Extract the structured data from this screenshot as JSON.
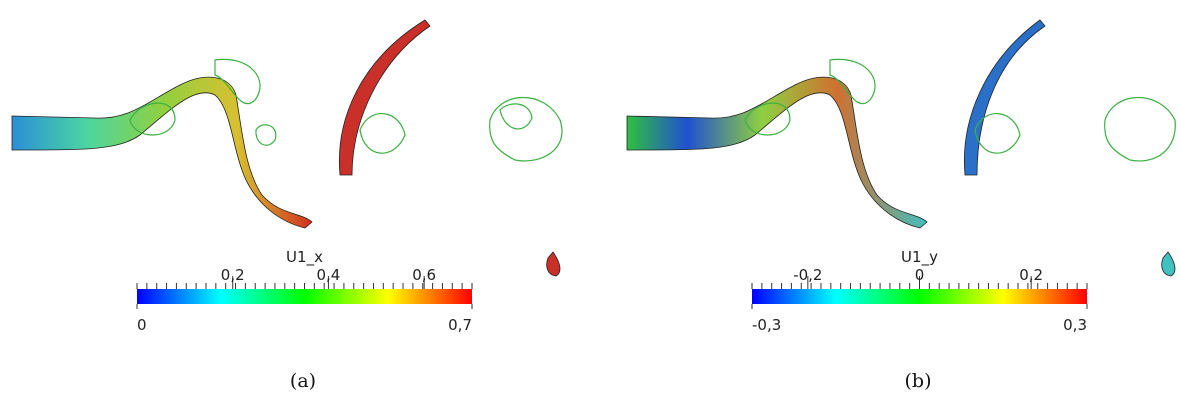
{
  "panels": [
    {
      "caption": "(a)",
      "colorbar": {
        "title": "U1_x",
        "lim": [
          {
            "value": 0,
            "label": "0"
          },
          {
            "value": 0.7,
            "label": "0,7"
          }
        ],
        "ticks": [
          {
            "value": 0.2,
            "label": "0,2"
          },
          {
            "value": 0.4,
            "label": "0,4"
          },
          {
            "value": 0.6,
            "label": "0,6"
          }
        ],
        "colormap": [
          "#0000ff",
          "#00ffff",
          "#00ff00",
          "#ffff00",
          "#ff0000"
        ]
      }
    },
    {
      "caption": "(b)",
      "colorbar": {
        "title": "U1_y",
        "lim": [
          {
            "value": -0.3,
            "label": "-0,3"
          },
          {
            "value": 0.3,
            "label": "0,3"
          }
        ],
        "ticks": [
          {
            "value": -0.2,
            "label": "-0,2"
          },
          {
            "value": 0,
            "label": "0"
          },
          {
            "value": 0.2,
            "label": "0,2"
          }
        ],
        "colormap": [
          "#0000ff",
          "#00ffff",
          "#00ff00",
          "#ffff00",
          "#ff0000"
        ]
      }
    }
  ]
}
